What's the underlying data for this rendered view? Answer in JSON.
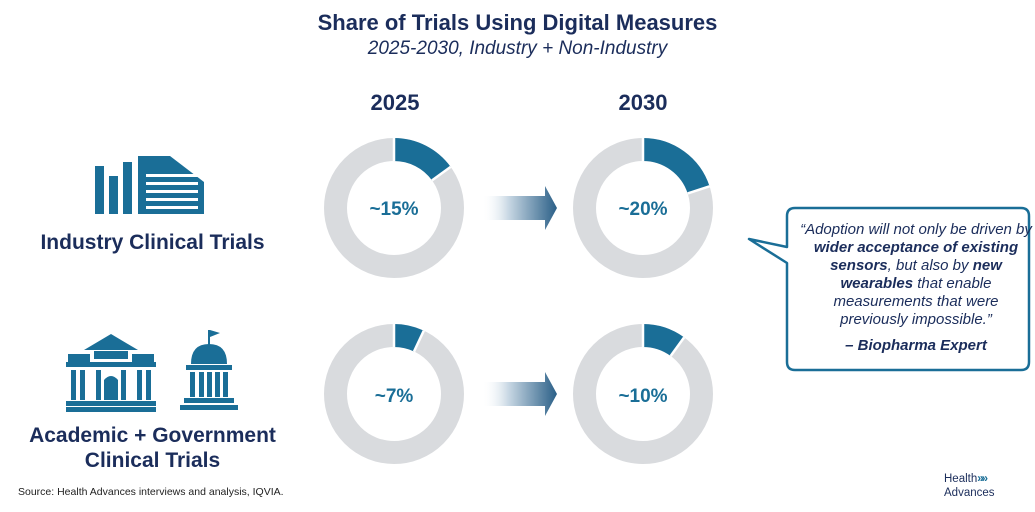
{
  "title": "Share of Trials Using Digital Measures",
  "subtitle": "2025-2030, Industry + Non-Industry",
  "colors": {
    "accent": "#1a6e97",
    "ring_gray": "#d9dbde",
    "navy": "#1b2d5b"
  },
  "chart_data": {
    "type": "pie",
    "title": "Share of Trials Using Digital Measures",
    "subtitle": "2025-2030, Industry + Non-Industry",
    "years": [
      "2025",
      "2030"
    ],
    "series": [
      {
        "name": "Industry Clinical Trials",
        "values": [
          15,
          20
        ],
        "labels": [
          "~15%",
          "~20%"
        ]
      },
      {
        "name": "Academic + Government Clinical Trials",
        "values": [
          7,
          10
        ],
        "labels": [
          "~7%",
          "~10%"
        ]
      }
    ]
  },
  "categories": {
    "industry": "Industry Clinical Trials",
    "academic_line1": "Academic + Government",
    "academic_line2": "Clinical Trials"
  },
  "quote": {
    "part1": "“Adoption will not only be driven by ",
    "bold1": "wider acceptance of existing sensors",
    "part2": ", but also by ",
    "bold2": "new wearables",
    "part3": " that enable measurements that were previously impossible.”",
    "author": "– Biopharma Expert"
  },
  "source": "Source:  Health Advances interviews and analysis, IQVIA.",
  "logo": {
    "line1": "Health",
    "chevrons": "»»",
    "line2": "Advances"
  }
}
